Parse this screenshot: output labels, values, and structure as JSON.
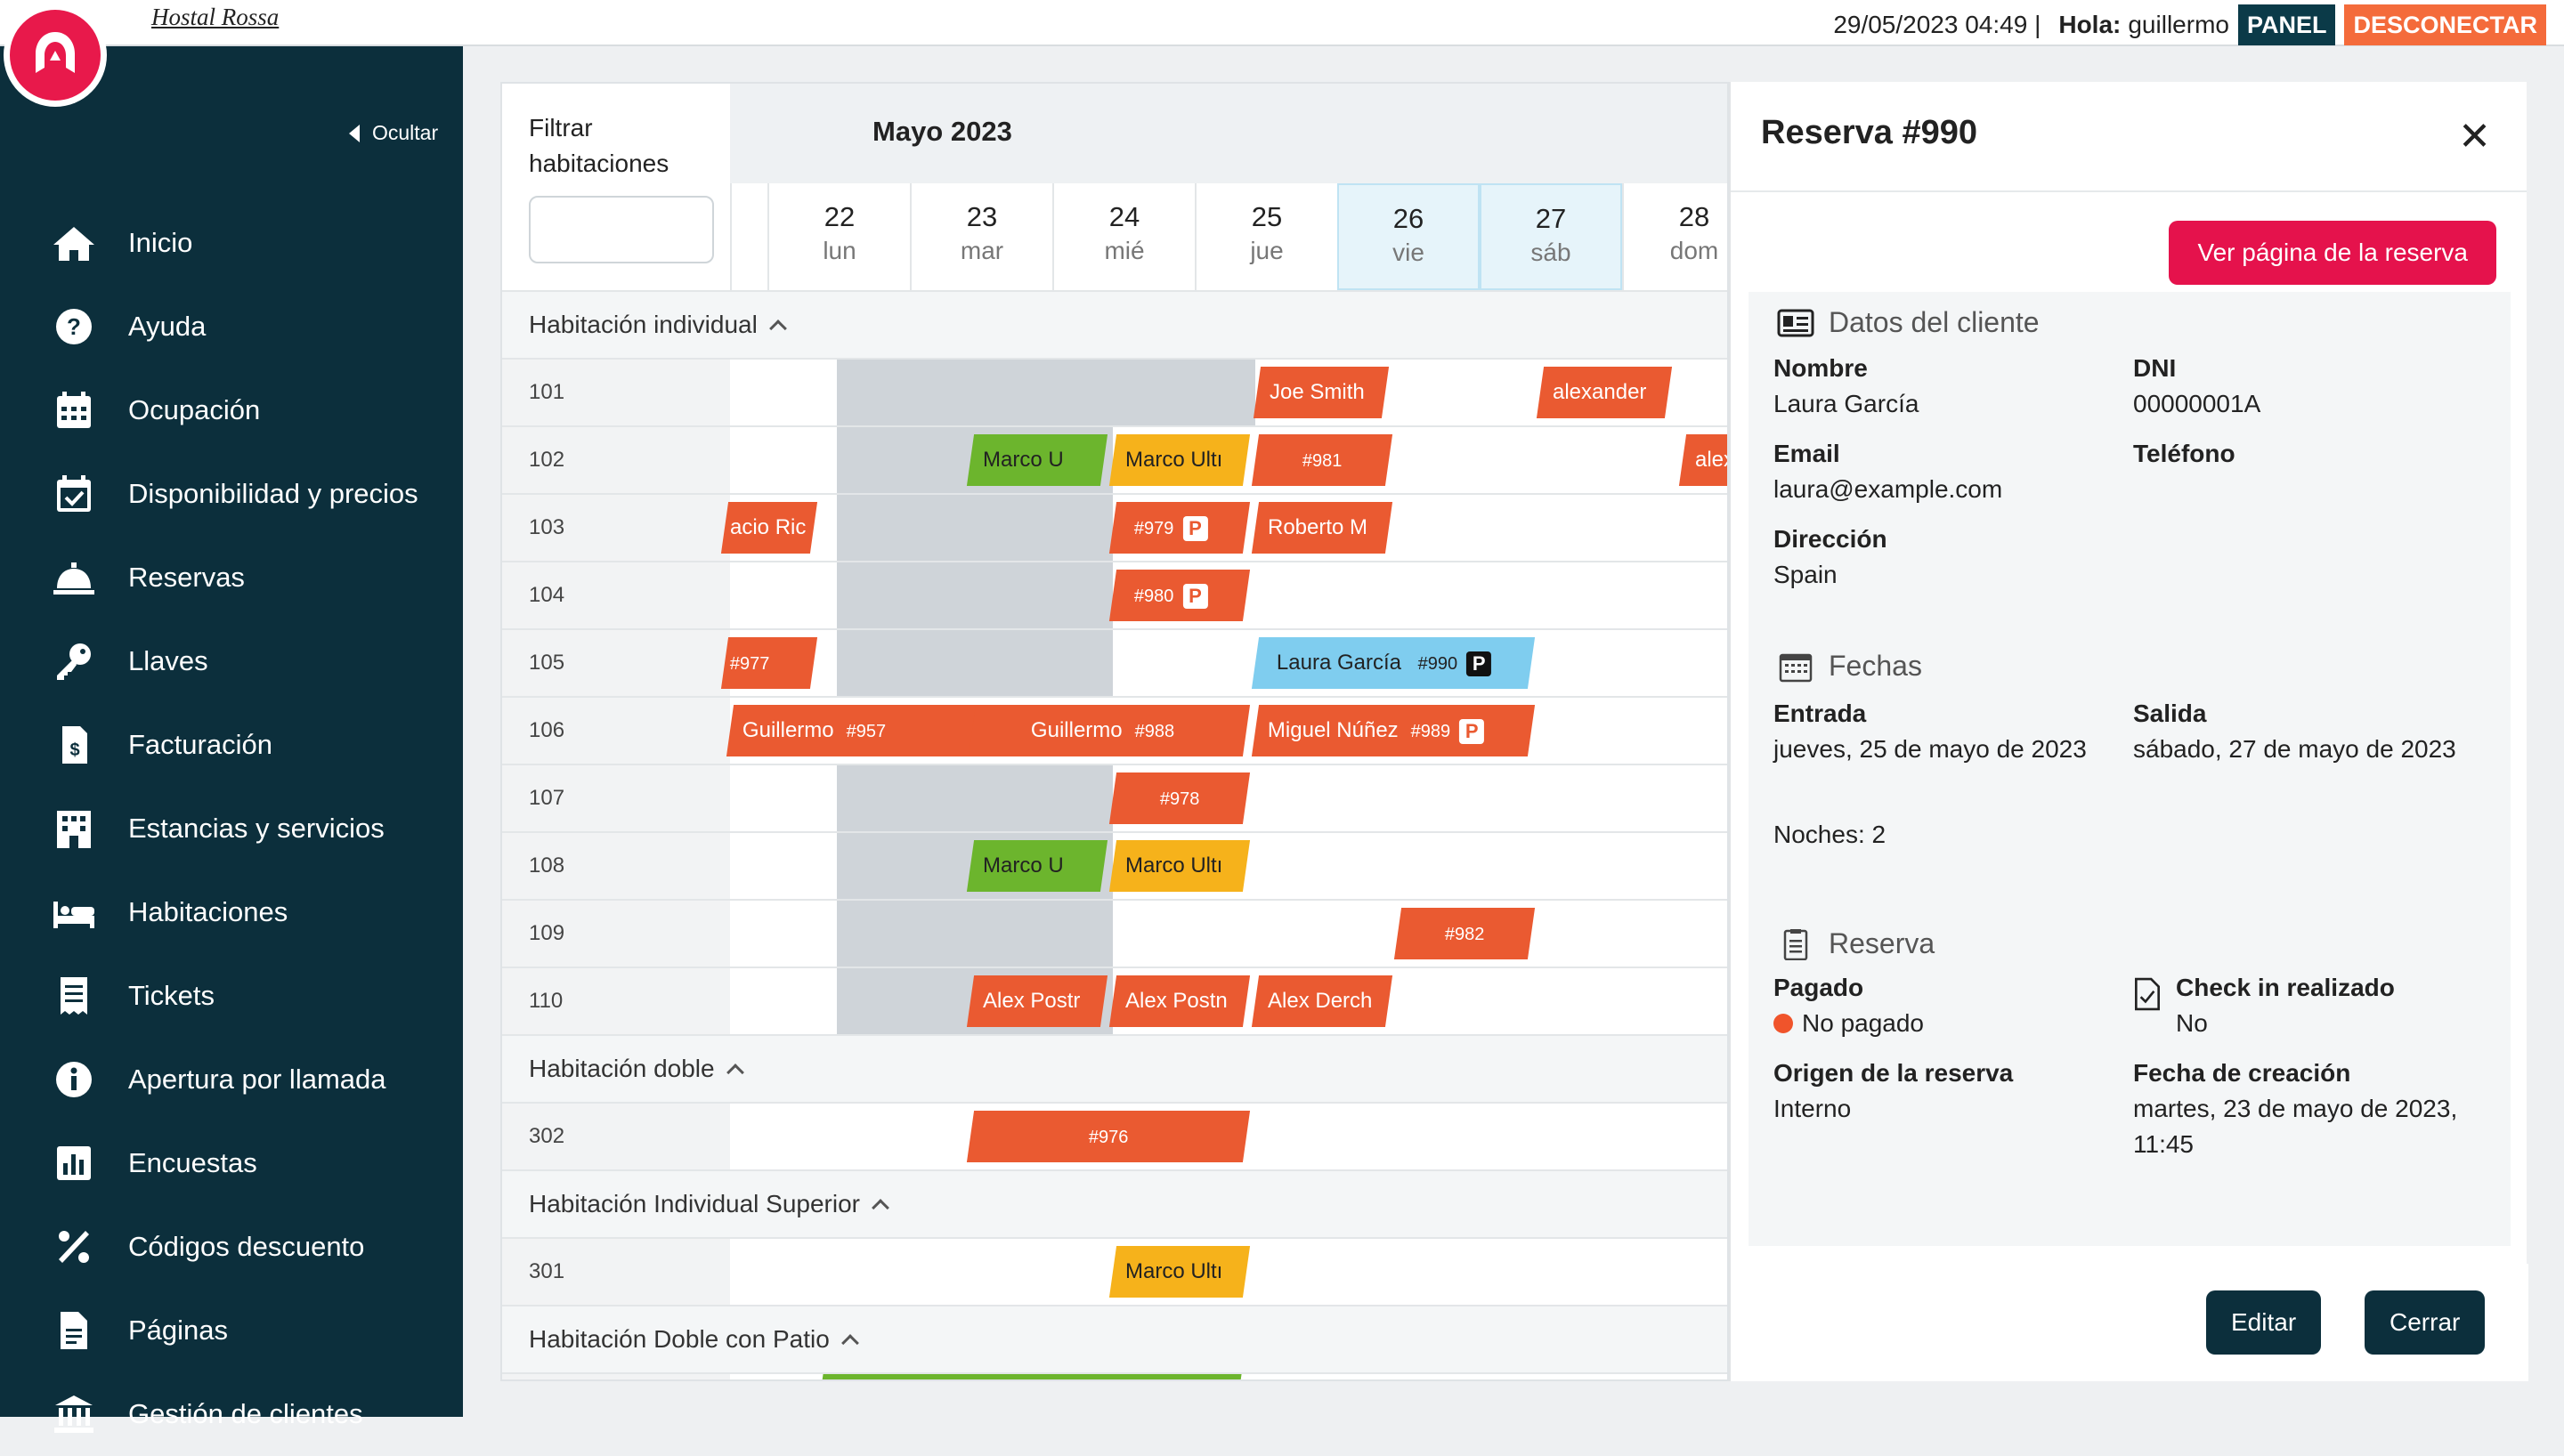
{
  "app": {
    "hotel_name": "Hostal Rossa",
    "datetime": "29/05/2023 04:49 |",
    "hola_label": "Hola:",
    "user": "guillermo",
    "panel_label": "PANEL",
    "logout_label": "DESCONECTAR"
  },
  "sidebar": {
    "hide_label": "Ocultar",
    "items": [
      {
        "label": "Inicio",
        "icon": "home-icon"
      },
      {
        "label": "Ayuda",
        "icon": "help-icon"
      },
      {
        "label": "Ocupación",
        "icon": "calendar-icon"
      },
      {
        "label": "Disponibilidad y precios",
        "icon": "calendar-check-icon"
      },
      {
        "label": "Reservas",
        "icon": "bell-icon"
      },
      {
        "label": "Llaves",
        "icon": "key-icon"
      },
      {
        "label": "Facturación",
        "icon": "invoice-icon"
      },
      {
        "label": "Estancias y servicios",
        "icon": "building-icon"
      },
      {
        "label": "Habitaciones",
        "icon": "bed-icon"
      },
      {
        "label": "Tickets",
        "icon": "receipt-icon"
      },
      {
        "label": "Apertura por llamada",
        "icon": "info-icon"
      },
      {
        "label": "Encuestas",
        "icon": "chart-icon"
      },
      {
        "label": "Códigos descuento",
        "icon": "percent-icon"
      },
      {
        "label": "Páginas",
        "icon": "page-icon"
      },
      {
        "label": "Gestión de clientes",
        "icon": "bank-icon"
      }
    ]
  },
  "calendar": {
    "filter_label": "Filtrar habitaciones",
    "filter_value": "",
    "month": "Mayo 2023",
    "days": [
      {
        "num": "22",
        "name": "lun"
      },
      {
        "num": "23",
        "name": "mar"
      },
      {
        "num": "24",
        "name": "mié"
      },
      {
        "num": "25",
        "name": "jue"
      },
      {
        "num": "26",
        "name": "vie"
      },
      {
        "num": "27",
        "name": "sáb"
      },
      {
        "num": "28",
        "name": "dom"
      }
    ],
    "sections": [
      {
        "title": "Habitación individual",
        "rooms": [
          "101",
          "102",
          "103",
          "104",
          "105",
          "106",
          "107",
          "108",
          "109",
          "110"
        ]
      },
      {
        "title": "Habitación doble",
        "rooms": [
          "302"
        ]
      },
      {
        "title": "Habitación Individual Superior",
        "rooms": [
          "301"
        ]
      },
      {
        "title": "Habitación Doble con Patio",
        "rooms": []
      }
    ],
    "bookings": {
      "b101a": "Joe Smith",
      "b101b": "alexander",
      "b102a": "Marco U",
      "b102b": "Marco Ultı",
      "b102c": "#981",
      "b102d": "alex",
      "b103a": "acio Ric",
      "b103b": "#979",
      "b103c": "Roberto M",
      "b104a": "#980",
      "b105a": "#977",
      "b105b_name": "Laura García",
      "b105b_id": "#990",
      "b106a_name": "Guillermo",
      "b106a_id": "#957",
      "b106b_name": "Guillermo",
      "b106b_id": "#988",
      "b106c_name": "Miguel Núñez",
      "b106c_id": "#989",
      "b107a": "#978",
      "b108a": "Marco U",
      "b108b": "Marco Ultı",
      "b109a": "#982",
      "b110a": "Alex Postr",
      "b110b": "Alex Postn",
      "b110c": "Alex Derch",
      "b302a": "#976",
      "b301a": "Marco Ultı",
      "parking_badge": "P"
    }
  },
  "reservation": {
    "title": "Reserva #990",
    "view_page_label": "Ver página de la reserva",
    "client_section": "Datos del cliente",
    "name_label": "Nombre",
    "name": "Laura García",
    "dni_label": "DNI",
    "dni": "00000001A",
    "email_label": "Email",
    "email": "laura@example.com",
    "phone_label": "Teléfono",
    "phone": "",
    "address_label": "Dirección",
    "address": "Spain",
    "dates_section": "Fechas",
    "checkin_label": "Entrada",
    "checkin": "jueves, 25 de mayo de 2023",
    "checkout_label": "Salida",
    "checkout": "sábado, 27 de mayo de 2023",
    "nights": "Noches: 2",
    "booking_section": "Reserva",
    "paid_label": "Pagado",
    "paid": "No pagado",
    "checkin_done_label": "Check in realizado",
    "checkin_done": "No",
    "origin_label": "Origen de la reserva",
    "origin": "Interno",
    "created_label": "Fecha de creación",
    "created": "martes, 23 de mayo de 2023, 11:45",
    "edit_label": "Editar",
    "close_label": "Cerrar",
    "paid_status_color": "#f0542b"
  }
}
